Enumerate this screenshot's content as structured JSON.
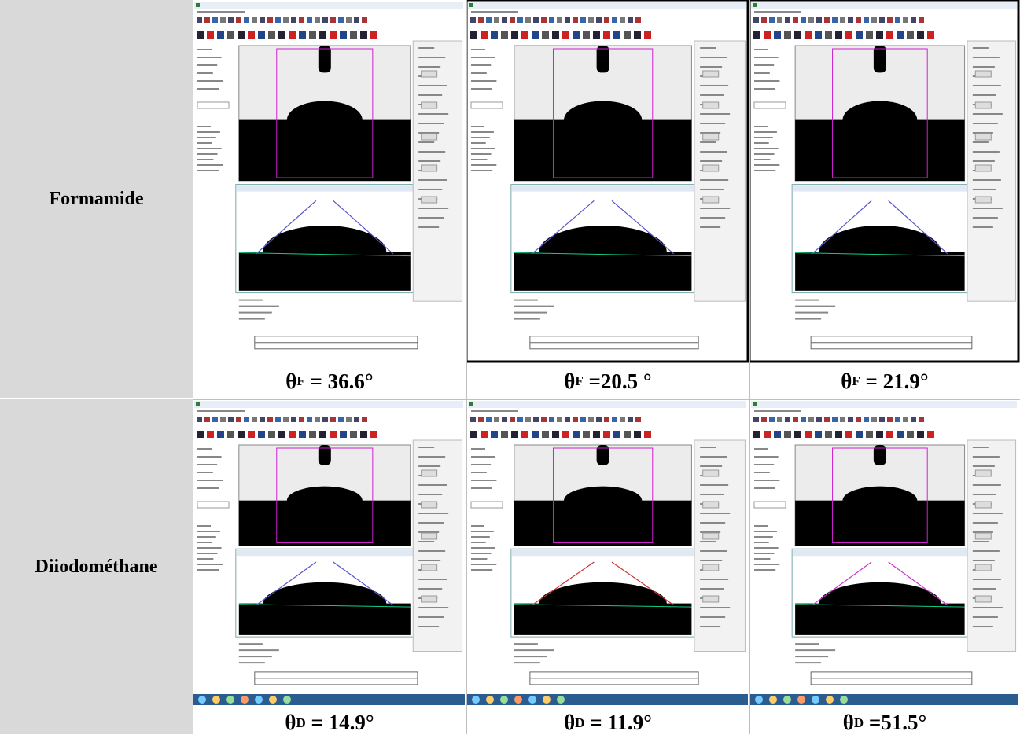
{
  "rows": [
    {
      "liquid": "Formamide",
      "captions": [
        {
          "symbol": "θ",
          "sub": "F",
          "text": " = 36.6°"
        },
        {
          "symbol": "θ",
          "sub": "F",
          "text": " =20.5 °"
        },
        {
          "symbol": "θ",
          "sub": "F",
          "text": " = 21.9°"
        }
      ]
    },
    {
      "liquid": "Diiodométhane",
      "captions": [
        {
          "symbol": "θ",
          "sub": "D",
          "text": " = 14.9°"
        },
        {
          "symbol": "θ",
          "sub": "D",
          "text": " = 11.9°"
        },
        {
          "symbol": "θ",
          "sub": "D",
          "text": " =51.5°"
        }
      ]
    }
  ]
}
